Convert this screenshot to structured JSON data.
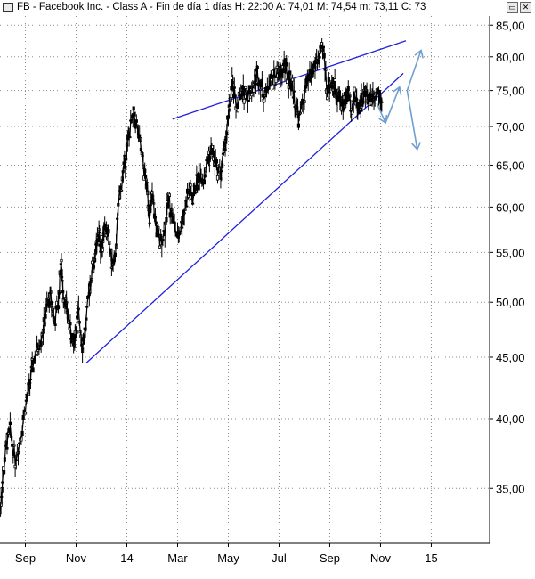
{
  "header": {
    "title": "FB - Facebook Inc. - Class A - Fin de día 1 días  H: 22:00  A: 74,01  M: 74,54  m: 73,11  C: 73"
  },
  "chart_data": {
    "type": "line",
    "title": "FB - Facebook Inc. - Class A - Fin de día 1 días",
    "y_scale": "log",
    "ylim": [
      31.5,
      86.5
    ],
    "y_ticks": [
      "35,00",
      "40,00",
      "45,00",
      "50,00",
      "55,00",
      "60,00",
      "65,00",
      "70,00",
      "75,00",
      "80,00",
      "85,00"
    ],
    "y_tick_values": [
      35,
      40,
      45,
      50,
      55,
      60,
      65,
      70,
      75,
      80,
      85
    ],
    "x_ticks": [
      "Sep",
      "Nov",
      "14",
      "Mar",
      "May",
      "Jul",
      "Sep",
      "Nov",
      "15"
    ],
    "x_tick_months": [
      1,
      3,
      5,
      7,
      9,
      11,
      13,
      15,
      17
    ],
    "x_range_months": [
      0,
      19.3
    ],
    "grid": true,
    "series": [
      {
        "name": "",
        "values_x_month": [
          0.0,
          0.1,
          0.25,
          0.4,
          0.6,
          0.8,
          1.0,
          1.15,
          1.3,
          1.5,
          1.7,
          1.85,
          2.0,
          2.15,
          2.3,
          2.4,
          2.5,
          2.65,
          2.8,
          2.9,
          3.0,
          3.1,
          3.25,
          3.4,
          3.55,
          3.7,
          3.8,
          3.9,
          4.0,
          4.1,
          4.25,
          4.4,
          4.5,
          4.7,
          4.85,
          5.0,
          5.15,
          5.3,
          5.5,
          5.65,
          5.8,
          5.9,
          6.0,
          6.15,
          6.3,
          6.5,
          6.65,
          6.8,
          7.0,
          7.15,
          7.3,
          7.45,
          7.6,
          7.75,
          7.9,
          8.05,
          8.2,
          8.35,
          8.5,
          8.7,
          8.85,
          9.0,
          9.15,
          9.3,
          9.5,
          9.65,
          9.8,
          10.0,
          10.15,
          10.3,
          10.45,
          10.6,
          10.8,
          11.0,
          11.1,
          11.2,
          11.35,
          11.5,
          11.65,
          11.8,
          12.0,
          12.15,
          12.3,
          12.45,
          12.6,
          12.75,
          12.9,
          13.05,
          13.2,
          13.3,
          13.4,
          13.5,
          13.6,
          13.7,
          13.85,
          14.0,
          14.1,
          14.25,
          14.4,
          14.55,
          14.7,
          14.9,
          15.05
        ],
        "values": [
          33.5,
          35.5,
          38.0,
          39.0,
          37.0,
          38.5,
          41.0,
          42.5,
          44.5,
          46.0,
          47.5,
          49.5,
          50.5,
          48.0,
          50.0,
          54.0,
          51.0,
          49.0,
          47.0,
          46.0,
          47.5,
          49.0,
          46.0,
          48.0,
          52.0,
          54.0,
          55.5,
          57.0,
          55.0,
          58.0,
          57.0,
          54.0,
          53.5,
          61.0,
          64.0,
          67.0,
          70.0,
          71.5,
          68.0,
          65.0,
          62.0,
          59.0,
          61.0,
          58.0,
          56.0,
          57.5,
          61.0,
          59.0,
          56.5,
          58.0,
          60.0,
          62.0,
          61.0,
          63.0,
          64.0,
          63.5,
          66.0,
          67.0,
          65.0,
          64.0,
          67.0,
          71.0,
          76.0,
          73.0,
          74.0,
          75.0,
          74.5,
          76.0,
          77.5,
          76.0,
          74.0,
          76.5,
          77.0,
          78.0,
          77.0,
          79.0,
          77.0,
          76.0,
          73.0,
          71.0,
          74.5,
          76.5,
          78.0,
          79.0,
          80.0,
          81.0,
          75.0,
          76.0,
          75.5,
          74.5,
          74.0,
          73.0,
          73.5,
          74.5,
          73.0,
          74.0,
          73.0,
          73.5,
          74.5,
          74.0,
          74.5,
          75.0,
          74.0
        ]
      }
    ],
    "trend_lines": [
      {
        "name": "",
        "color": "#2020dd",
        "from": [
          3.4,
          44.5
        ],
        "to": [
          15.9,
          77.5
        ]
      },
      {
        "name": "",
        "color": "#2020dd",
        "from": [
          6.8,
          71.0
        ],
        "to": [
          16.0,
          82.5
        ]
      }
    ],
    "forecast_arrows": {
      "color": "#6f9fcf",
      "paths": [
        [
          [
            14.85,
            73.2
          ],
          [
            15.2,
            70.5
          ]
        ],
        [
          [
            15.2,
            70.5
          ],
          [
            15.75,
            75.5
          ]
        ],
        [
          [
            16.05,
            75.0
          ],
          [
            16.6,
            81.0
          ]
        ],
        [
          [
            16.05,
            75.0
          ],
          [
            16.45,
            67.0
          ]
        ]
      ]
    }
  }
}
